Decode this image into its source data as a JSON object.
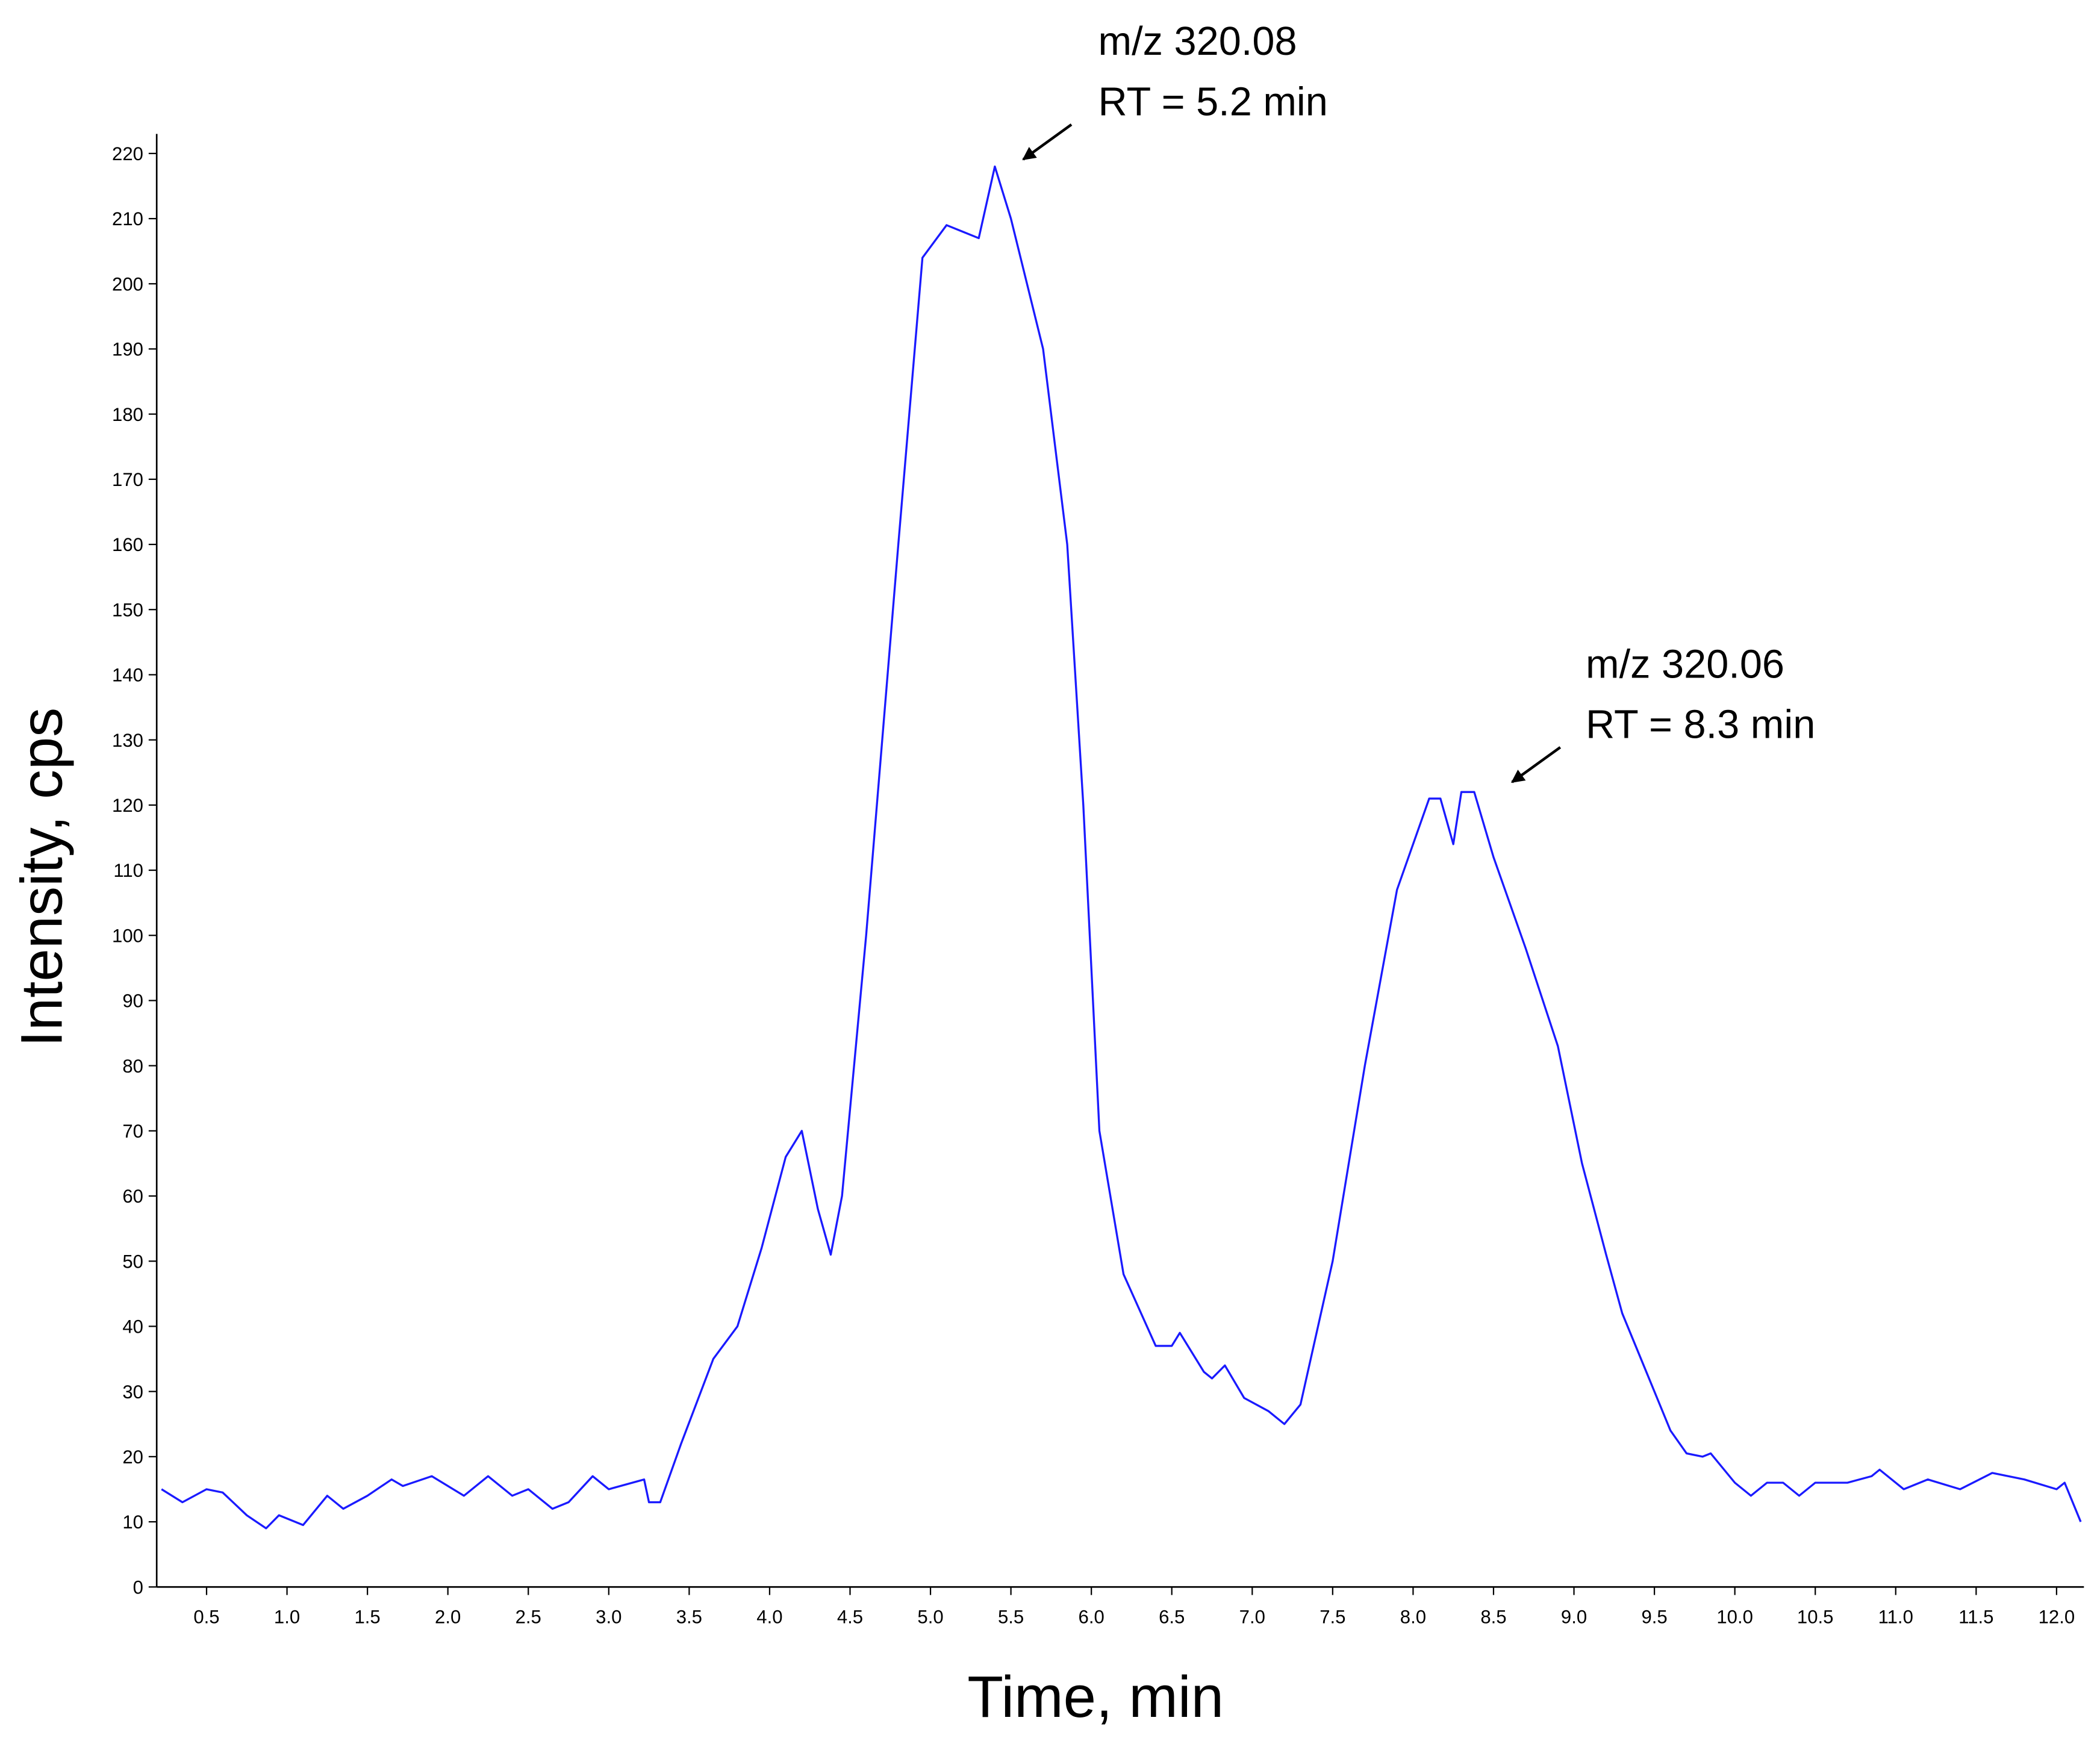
{
  "chart_data": {
    "type": "line",
    "x_label": "Time, min",
    "y_label": "Intensity, cps",
    "color": "#1a1aff",
    "annotations": [
      {
        "lines": [
          "m/z 320.08",
          "RT = 5.2 min"
        ]
      },
      {
        "lines": [
          "m/z 320.06",
          "RT = 8.3 min"
        ]
      }
    ],
    "x": [
      0.22,
      0.35,
      0.5,
      0.6,
      0.75,
      0.87,
      0.95,
      1.1,
      1.25,
      1.35,
      1.5,
      1.65,
      1.72,
      1.9,
      2.1,
      2.25,
      2.4,
      2.5,
      2.65,
      2.75,
      2.9,
      3.0,
      3.22,
      3.25,
      3.32,
      3.45,
      3.65,
      3.8,
      3.95,
      4.1,
      4.2,
      4.3,
      4.38,
      4.45,
      4.6,
      4.8,
      4.95,
      5.1,
      5.2,
      5.3,
      5.4,
      5.5,
      5.7,
      5.85,
      5.95,
      6.05,
      6.2,
      6.4,
      6.5,
      6.55,
      6.7,
      6.75,
      6.83,
      6.95,
      7.1,
      7.2,
      7.3,
      7.5,
      7.7,
      7.9,
      8.1,
      8.17,
      8.25,
      8.3,
      8.38,
      8.5,
      8.7,
      8.9,
      9.05,
      9.2,
      9.3,
      9.45,
      9.6,
      9.7,
      9.8,
      9.85,
      10.0,
      10.1,
      10.2,
      10.3,
      10.4,
      10.5,
      10.7,
      10.85,
      10.9,
      11.05,
      11.2,
      11.4,
      11.6,
      11.8,
      12.0,
      12.05,
      12.15
    ],
    "values": [
      15,
      13,
      15,
      14.5,
      11,
      9,
      11,
      9.5,
      14,
      12,
      14,
      16.5,
      15.5,
      17,
      14,
      17,
      14,
      15,
      12,
      13,
      17,
      15,
      16.5,
      13,
      13,
      22,
      35,
      40,
      52,
      66,
      70,
      58,
      51,
      60,
      100,
      160,
      204,
      209,
      208,
      207,
      218,
      210,
      190,
      160,
      120,
      70,
      48,
      37,
      37,
      39,
      33,
      32,
      34,
      29,
      27,
      25,
      28,
      50,
      80,
      107,
      121,
      121,
      114,
      122,
      122,
      112,
      98,
      83,
      65,
      51,
      42,
      33,
      24,
      20.5,
      20,
      20.5,
      16,
      14,
      16,
      16,
      14,
      16,
      16,
      17,
      18,
      15,
      16.5,
      15,
      17.5,
      16.5,
      15,
      16,
      10
    ],
    "xlim": [
      0.19,
      12.17
    ],
    "ylim": [
      0,
      223
    ],
    "xticks": [
      0.5,
      {
        "value": 1,
        "label": "1.0"
      },
      1.5,
      {
        "value": 2,
        "label": "2.0"
      },
      2.5,
      {
        "value": 3,
        "label": "3.0"
      },
      3.5,
      {
        "value": 4,
        "label": "4.0"
      },
      4.5,
      {
        "value": 5,
        "label": "5.0"
      },
      5.5,
      {
        "value": 6,
        "label": "6.0"
      },
      6.5,
      {
        "value": 7,
        "label": "7.0"
      },
      7.5,
      {
        "value": 8,
        "label": "8.0"
      },
      8.5,
      {
        "value": 9,
        "label": "9.0"
      },
      9.5,
      {
        "value": 10,
        "label": "10.0"
      },
      10.5,
      {
        "value": 11,
        "label": "11.0"
      },
      11.5,
      {
        "value": 12,
        "label": "12.0"
      }
    ],
    "yticks": [
      0,
      10,
      20,
      30,
      40,
      50,
      60,
      70,
      80,
      90,
      100,
      110,
      120,
      130,
      140,
      150,
      160,
      170,
      180,
      190,
      200,
      210,
      220
    ]
  }
}
